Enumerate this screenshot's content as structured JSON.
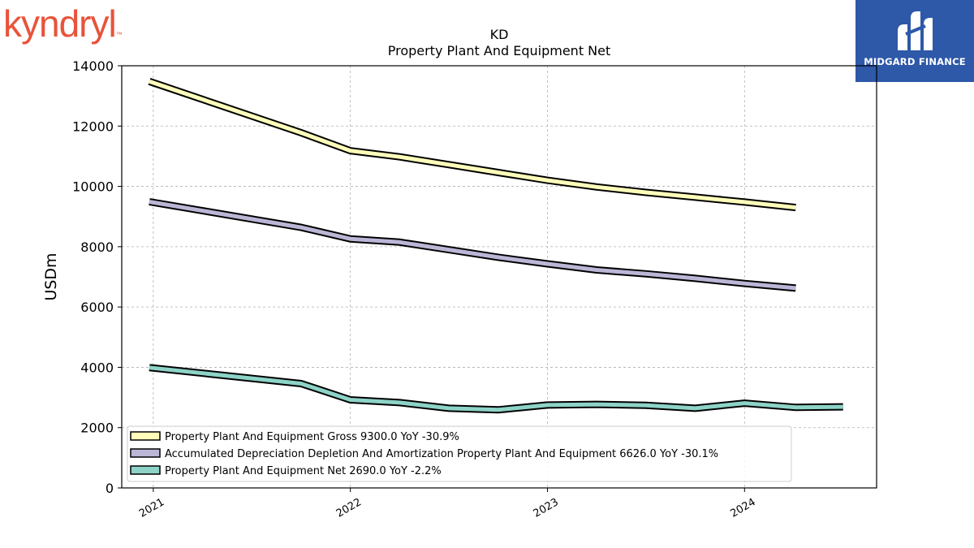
{
  "branding": {
    "left_logo_text": "kyndryl",
    "left_logo_tm": "™",
    "right_logo_text": "MIDGARD FINANCE",
    "right_logo_icon": "midgard-m-icon",
    "left_logo_color": "#e8533a",
    "right_logo_bg": "#2e58a8"
  },
  "chart_data": {
    "type": "line",
    "title": "KD",
    "subtitle": "Property Plant And Equipment Net",
    "xlabel": "",
    "ylabel": "USDm",
    "ylim": [
      0,
      14000
    ],
    "xlim": [
      2020.84,
      2024.67
    ],
    "yticks": [
      0,
      2000,
      4000,
      6000,
      8000,
      10000,
      12000,
      14000
    ],
    "xticks": [
      {
        "value": 2021,
        "label": "2021"
      },
      {
        "value": 2022,
        "label": "2022"
      },
      {
        "value": 2023,
        "label": "2023"
      },
      {
        "value": 2024,
        "label": "2024"
      }
    ],
    "grid": true,
    "legend_position": "lower-left",
    "series": [
      {
        "name": "Property Plant And Equipment Gross",
        "legend": "Property Plant And Equipment Gross  9300.0 YoY -30.9%",
        "color": "#ffffbb",
        "points": [
          [
            2020.98,
            13480
          ],
          [
            2021.75,
            11780
          ],
          [
            2022.0,
            11180
          ],
          [
            2022.25,
            10980
          ],
          [
            2022.5,
            10720
          ],
          [
            2022.75,
            10460
          ],
          [
            2023.0,
            10200
          ],
          [
            2023.25,
            9980
          ],
          [
            2023.5,
            9800
          ],
          [
            2023.75,
            9640
          ],
          [
            2024.0,
            9480
          ],
          [
            2024.26,
            9300
          ]
        ]
      },
      {
        "name": "Accumulated Depreciation Depletion And Amortization Property Plant And Equipment",
        "legend": "Accumulated Depreciation Depletion And Amortization Property Plant And Equipment  6626.0 YoY -30.1%",
        "color": "#bcb6d6",
        "points": [
          [
            2020.98,
            9490
          ],
          [
            2021.75,
            8640
          ],
          [
            2022.0,
            8260
          ],
          [
            2022.25,
            8150
          ],
          [
            2022.5,
            7900
          ],
          [
            2022.75,
            7650
          ],
          [
            2023.0,
            7430
          ],
          [
            2023.25,
            7230
          ],
          [
            2023.5,
            7100
          ],
          [
            2023.75,
            6950
          ],
          [
            2024.0,
            6780
          ],
          [
            2024.26,
            6626
          ]
        ]
      },
      {
        "name": "Property Plant And Equipment Net",
        "legend": "Property Plant And Equipment Net  2690.0 YoY -2.2%",
        "color": "#8dd3c7",
        "points": [
          [
            2020.98,
            3990
          ],
          [
            2021.75,
            3460
          ],
          [
            2022.0,
            2920
          ],
          [
            2022.25,
            2830
          ],
          [
            2022.5,
            2640
          ],
          [
            2022.75,
            2590
          ],
          [
            2023.0,
            2750
          ],
          [
            2023.25,
            2770
          ],
          [
            2023.5,
            2740
          ],
          [
            2023.75,
            2640
          ],
          [
            2024.0,
            2810
          ],
          [
            2024.26,
            2670
          ],
          [
            2024.5,
            2690
          ]
        ]
      }
    ]
  }
}
